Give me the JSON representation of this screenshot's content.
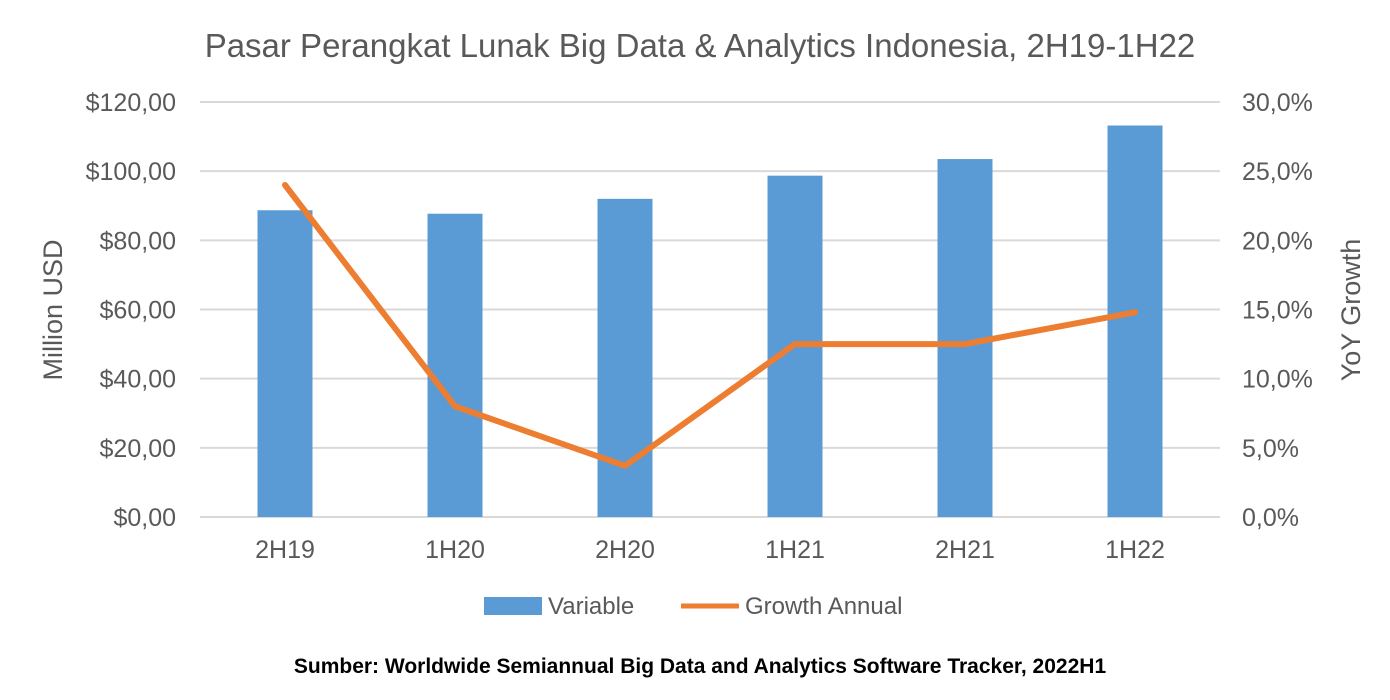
{
  "chart_data": {
    "type": "bar",
    "title": "Pasar Perangkat Lunak Big Data & Analytics Indonesia, 2H19-1H22",
    "categories": [
      "2H19",
      "1H20",
      "2H20",
      "1H21",
      "2H21",
      "1H22"
    ],
    "series": [
      {
        "name": "Variable",
        "type": "bar",
        "axis": "left",
        "color": "#5B9BD5",
        "values": [
          88.7,
          87.7,
          92.0,
          98.7,
          103.5,
          113.2
        ]
      },
      {
        "name": "Growth Annual",
        "type": "line",
        "axis": "right",
        "color": "#ED7D31",
        "values": [
          24.0,
          8.0,
          3.7,
          12.5,
          12.5,
          14.8
        ]
      }
    ],
    "ylabel": "Million USD",
    "ylim": [
      0,
      120
    ],
    "yticks": [
      0,
      20,
      40,
      60,
      80,
      100,
      120
    ],
    "ytick_labels": [
      "$0,00",
      "$20,00",
      "$40,00",
      "$60,00",
      "$80,00",
      "$100,00",
      "$120,00"
    ],
    "y2label": "YoY Growth",
    "y2lim": [
      0,
      30
    ],
    "y2ticks": [
      0,
      5,
      10,
      15,
      20,
      25,
      30
    ],
    "y2tick_labels": [
      "0,0%",
      "5,0%",
      "10,0%",
      "15,0%",
      "20,0%",
      "25,0%",
      "30,0%"
    ],
    "grid": true,
    "gridcolor": "#D9D9D9",
    "legend_position": "bottom",
    "source": "Sumber: Worldwide Semiannual Big Data and Analytics Software Tracker, 2022H1"
  }
}
